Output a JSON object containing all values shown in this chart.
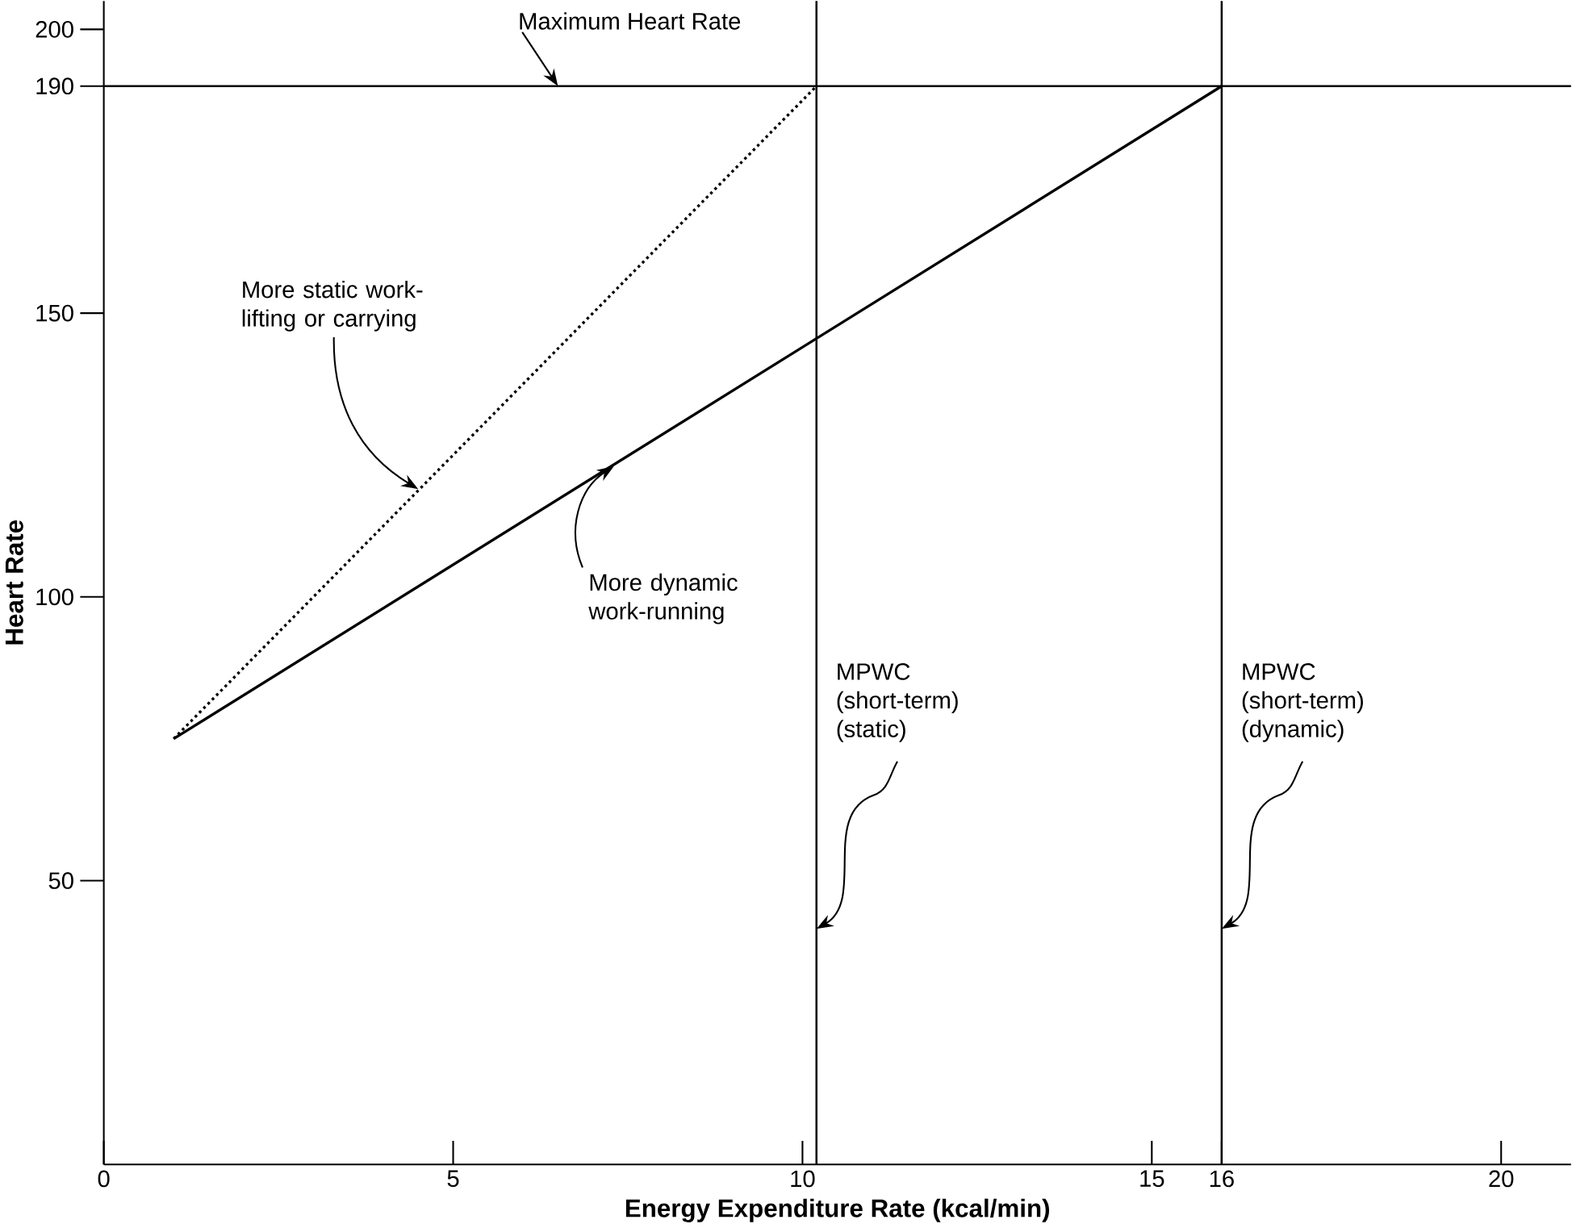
{
  "chart_data": {
    "type": "line",
    "xlabel": "Energy Expenditure Rate (kcal/min)",
    "ylabel": "Heart Rate",
    "xlim": [
      0,
      21
    ],
    "ylim": [
      0,
      205
    ],
    "xticks": [
      0,
      5,
      10,
      15,
      16,
      20
    ],
    "yticks": [
      50,
      100,
      150,
      190,
      200
    ],
    "series": [
      {
        "x": [
          1,
          10.2
        ],
        "values": [
          75,
          190
        ],
        "color": "#000000",
        "line_style": "dotted"
      },
      {
        "x": [
          1,
          16
        ],
        "values": [
          75,
          190
        ],
        "color": "#000000",
        "line_style": "solid"
      }
    ],
    "ref_lines": [
      {
        "axis": "y",
        "value": 190,
        "label": "Maximum Heart Rate"
      },
      {
        "axis": "x",
        "value": 10.2,
        "label": "MPWC (short-term) (static)"
      },
      {
        "axis": "x",
        "value": 16,
        "label": "MPWC (short-term) (dynamic)"
      }
    ],
    "annotations": [
      {
        "text": "More static work-lifting or carrying",
        "x": 4.5,
        "y": 119
      },
      {
        "text": "More dynamic work-running",
        "x": 7.3,
        "y": 123
      }
    ]
  }
}
